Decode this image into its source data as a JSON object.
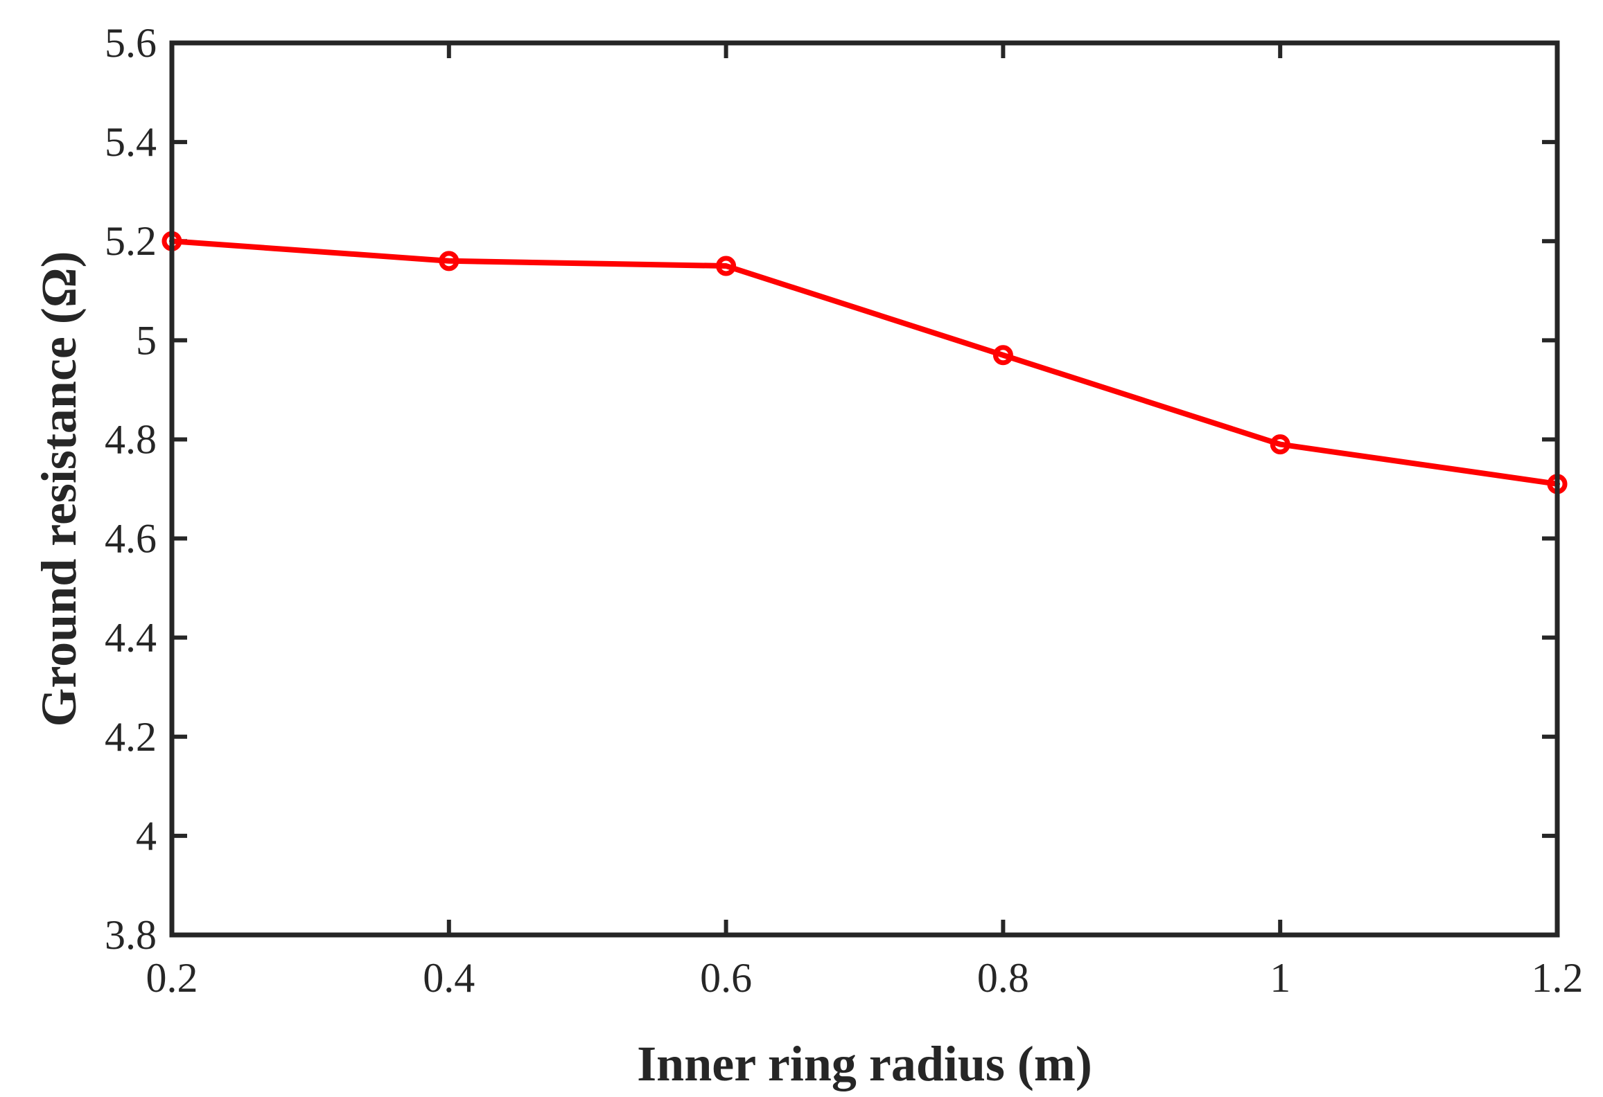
{
  "chart_data": {
    "type": "line",
    "title": "",
    "xlabel": "Inner ring radius (m)",
    "ylabel": "Ground resistance (Ω)",
    "x": [
      0.2,
      0.4,
      0.6,
      0.8,
      1.0,
      1.2
    ],
    "series": [
      {
        "values": [
          5.2,
          5.16,
          5.15,
          4.97,
          4.79,
          4.71
        ],
        "color": "#ff0000",
        "marker": "circle"
      }
    ],
    "xlim": [
      0.2,
      1.2
    ],
    "ylim": [
      3.8,
      5.6
    ],
    "xticks": [
      0.2,
      0.4,
      0.6,
      0.8,
      1.0,
      1.2
    ],
    "xtick_labels": [
      "0.2",
      "0.4",
      "0.6",
      "0.8",
      "1",
      "1.2"
    ],
    "yticks": [
      3.8,
      4.0,
      4.2,
      4.4,
      4.6,
      4.8,
      5.0,
      5.2,
      5.4,
      5.6
    ],
    "ytick_labels": [
      "3.8",
      "4",
      "4.2",
      "4.4",
      "4.6",
      "4.8",
      "5",
      "5.2",
      "5.4",
      "5.6"
    ],
    "grid": false,
    "legend": false,
    "box": true
  }
}
